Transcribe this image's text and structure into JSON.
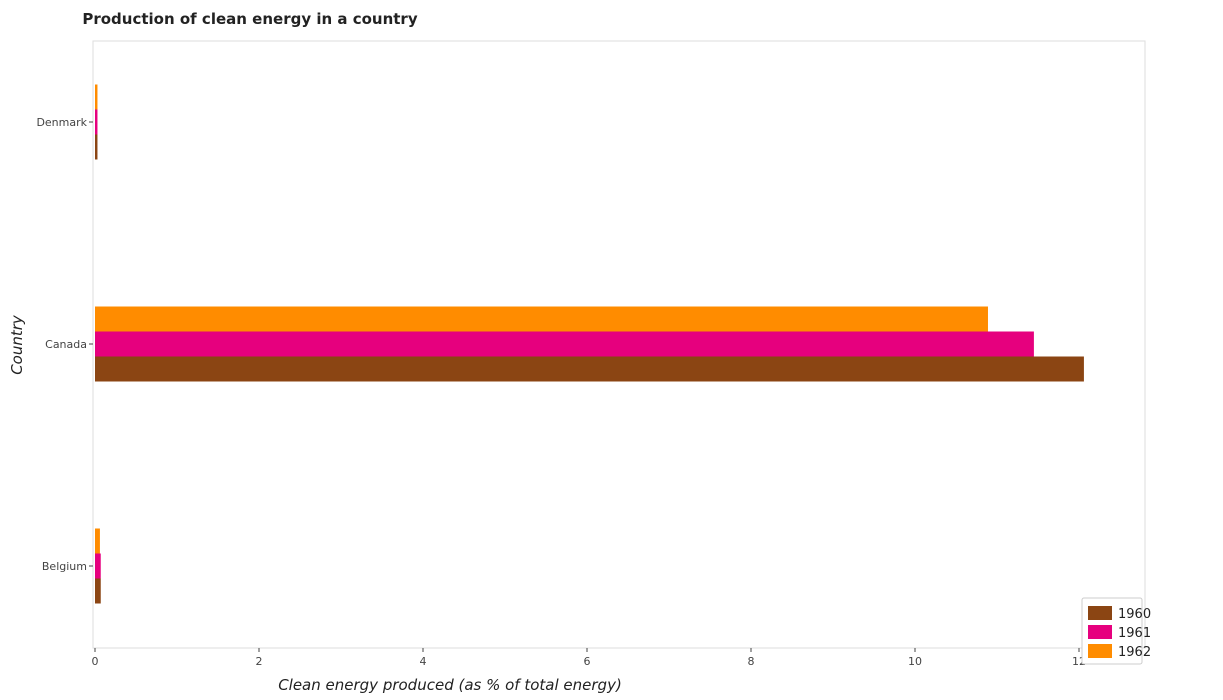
{
  "chart_data": {
    "type": "bar",
    "orientation": "horizontal",
    "title": "Production of clean energy in a country",
    "xlabel": "Clean energy produced (as % of total energy)",
    "ylabel": "Country",
    "categories": [
      "Belgium",
      "Canada",
      "Denmark"
    ],
    "series": [
      {
        "name": "1960",
        "color": "#8B4513",
        "values": [
          0.07,
          12.06,
          0.03
        ]
      },
      {
        "name": "1961",
        "color": "#E6007E",
        "values": [
          0.07,
          11.45,
          0.03
        ]
      },
      {
        "name": "1962",
        "color": "#FF8C00",
        "values": [
          0.06,
          10.89,
          0.03
        ]
      }
    ],
    "xlim": [
      0,
      12.65
    ],
    "xticks": [
      0,
      2,
      4,
      6,
      8,
      10,
      12
    ],
    "grid": false,
    "legend_position": "bottom-right"
  }
}
